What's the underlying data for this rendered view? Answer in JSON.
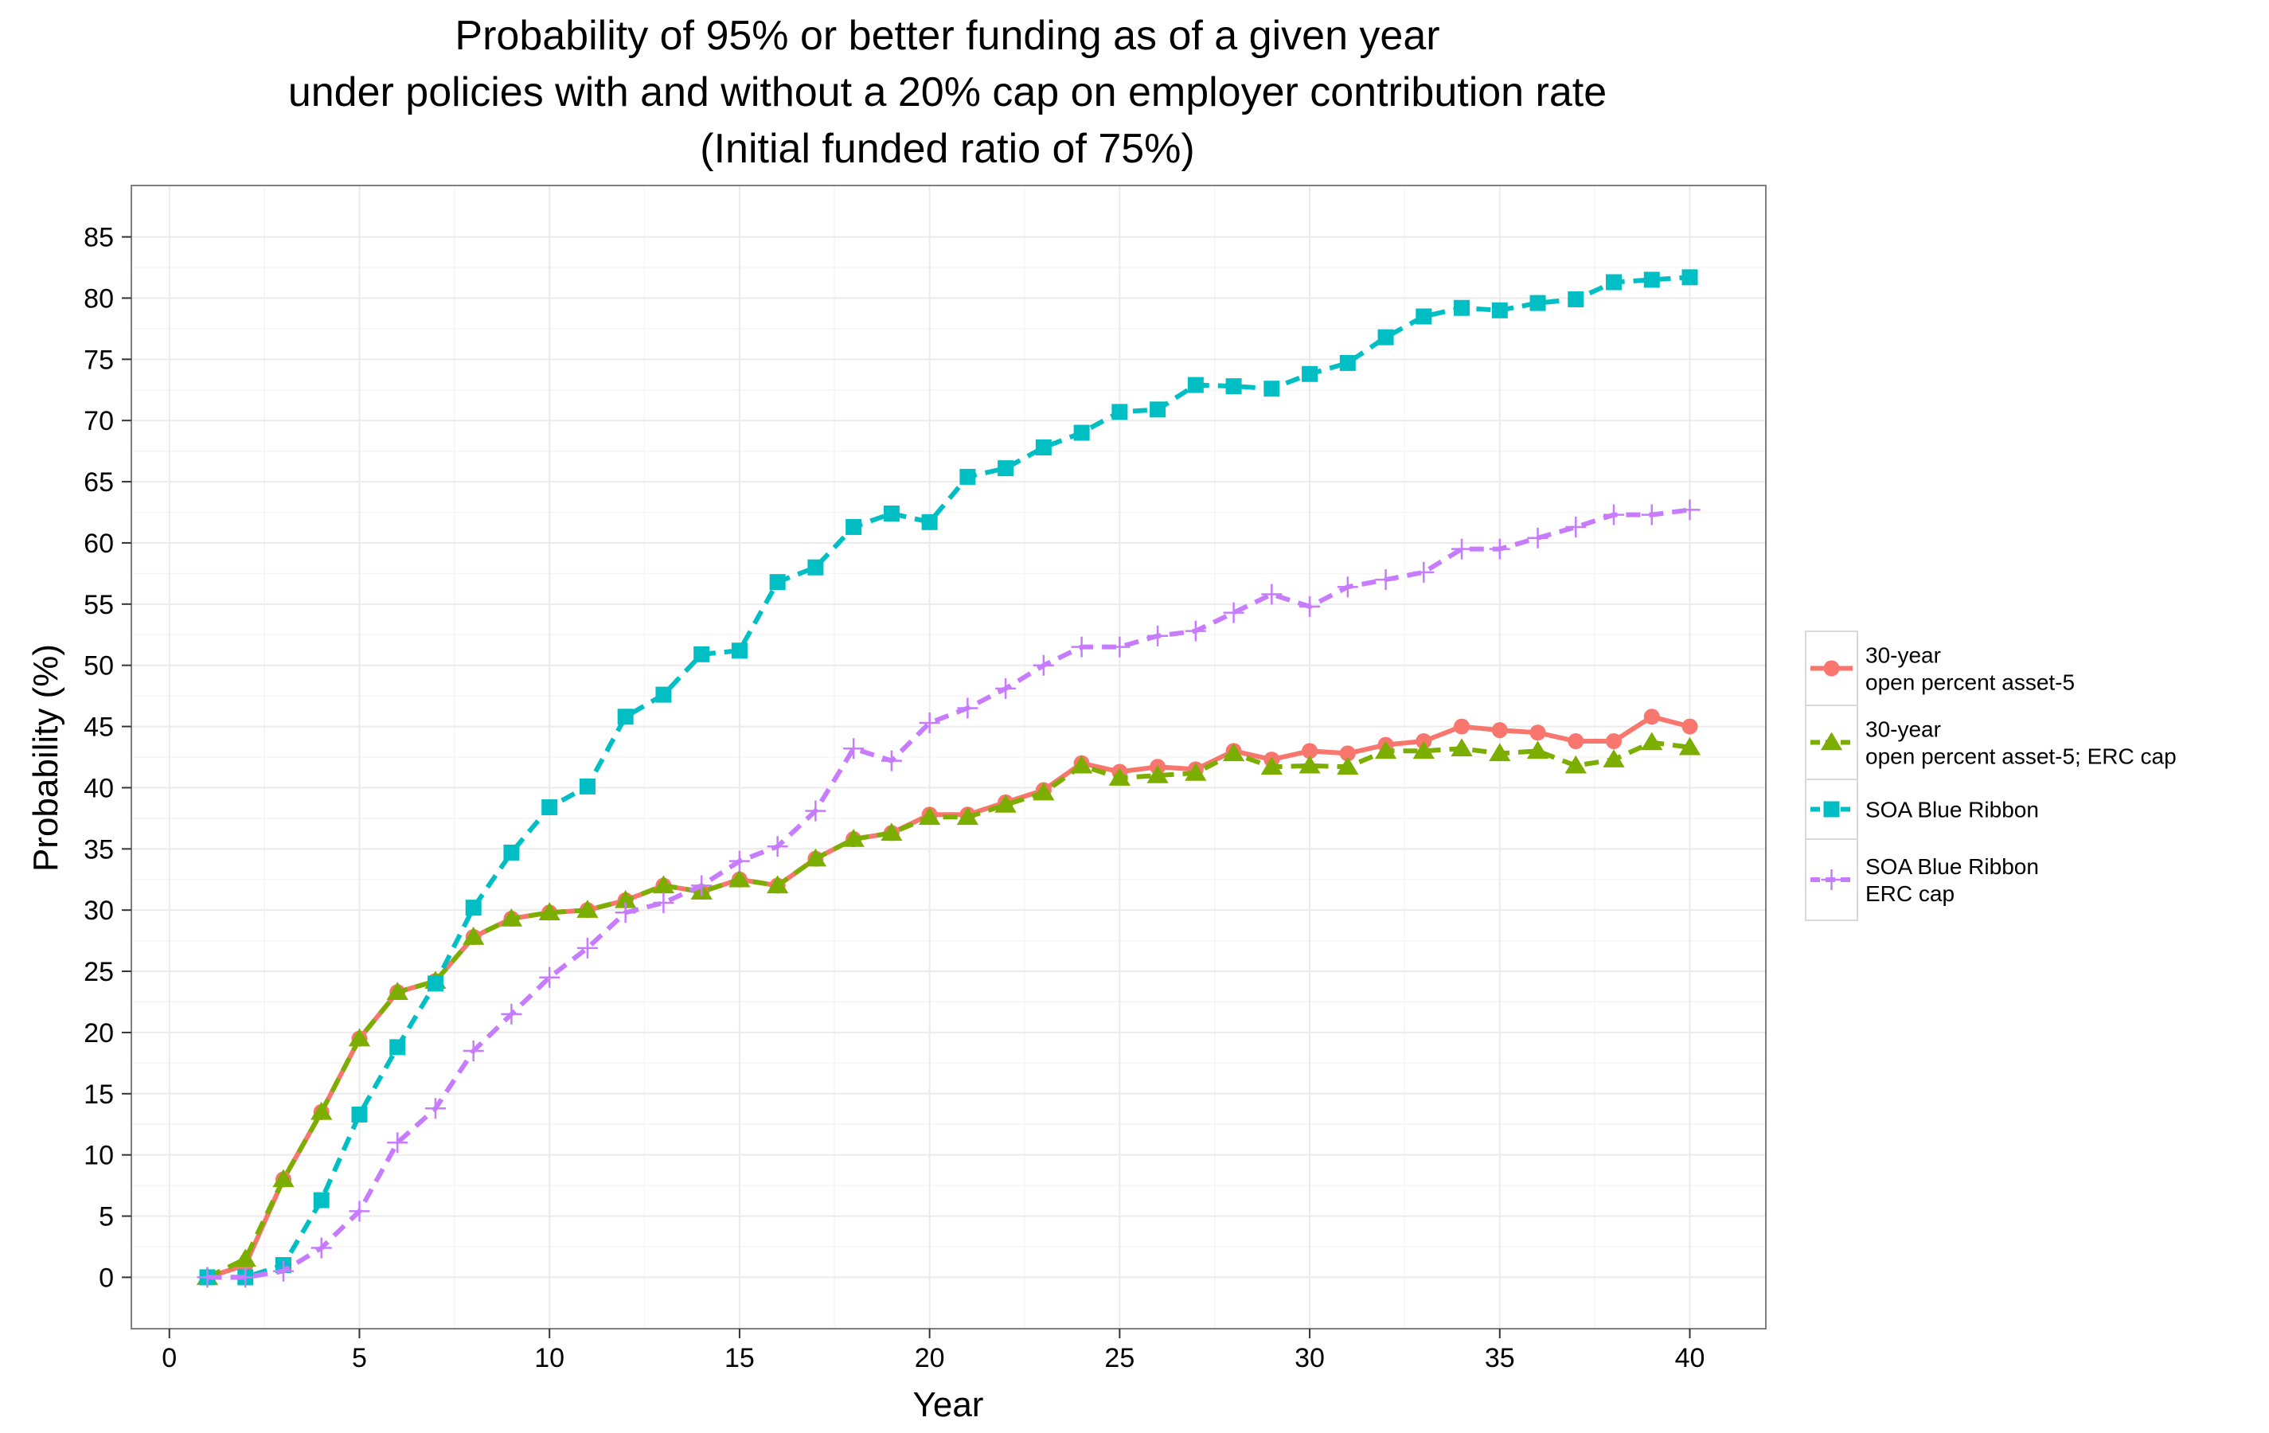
{
  "chart_data": {
    "type": "line",
    "title": [
      "Probability of 95% or better funding as of a given year",
      "under policies with and without a 20% cap on employer contribution rate",
      "(Initial funded ratio of 75%)"
    ],
    "xlabel": "Year",
    "ylabel": "Probability (%)",
    "xlim": [
      -1,
      42
    ],
    "ylim": [
      -4.2,
      89.2
    ],
    "x_ticks": [
      0,
      5,
      10,
      15,
      20,
      25,
      30,
      35,
      40
    ],
    "y_ticks": [
      0,
      5,
      10,
      15,
      20,
      25,
      30,
      35,
      40,
      45,
      50,
      55,
      60,
      65,
      70,
      75,
      80,
      85
    ],
    "grid": true,
    "legend_position": "right",
    "x": [
      1,
      2,
      3,
      4,
      5,
      6,
      7,
      8,
      9,
      10,
      11,
      12,
      13,
      14,
      15,
      16,
      17,
      18,
      19,
      20,
      21,
      22,
      23,
      24,
      25,
      26,
      27,
      28,
      29,
      30,
      31,
      32,
      33,
      34,
      35,
      36,
      37,
      38,
      39,
      40
    ],
    "series": [
      {
        "name": [
          "30-year",
          "open percent asset-5"
        ],
        "color": "#f8766d",
        "marker": "circle",
        "dash": "solid",
        "values": [
          0,
          1,
          8,
          13.5,
          19.5,
          23.3,
          24.2,
          27.8,
          29.3,
          29.8,
          30,
          30.8,
          32,
          31.5,
          32.5,
          32,
          34.2,
          35.8,
          36.3,
          37.8,
          37.8,
          38.8,
          39.8,
          42,
          41.3,
          41.7,
          41.5,
          43,
          42.3,
          43,
          42.8,
          43.5,
          43.8,
          45,
          44.7,
          44.5,
          43.8,
          43.8,
          45.8,
          45
        ]
      },
      {
        "name": [
          "30-year",
          "open percent asset-5; ERC cap"
        ],
        "color": "#7cae00",
        "marker": "triangle",
        "dash": "dashed",
        "values": [
          0,
          1.5,
          8,
          13.5,
          19.5,
          23.3,
          24.2,
          27.8,
          29.3,
          29.8,
          30,
          30.8,
          32,
          31.5,
          32.5,
          32,
          34.2,
          35.8,
          36.3,
          37.6,
          37.6,
          38.6,
          39.6,
          41.8,
          40.8,
          41,
          41.2,
          42.8,
          41.7,
          41.8,
          41.7,
          43,
          43,
          43.2,
          42.8,
          43,
          41.8,
          42.3,
          43.7,
          43.3
        ]
      },
      {
        "name": [
          "SOA Blue Ribbon"
        ],
        "color": "#00bfc4",
        "marker": "square",
        "dash": "dashed",
        "values": [
          0,
          0,
          1,
          6.3,
          13.3,
          18.8,
          24,
          30.2,
          34.7,
          38.4,
          40.1,
          45.8,
          47.6,
          50.9,
          51.2,
          56.8,
          58,
          61.3,
          62.4,
          61.7,
          65.4,
          66.1,
          67.8,
          69,
          70.7,
          70.9,
          72.9,
          72.8,
          72.6,
          73.8,
          74.7,
          76.8,
          78.5,
          79.2,
          79,
          79.6,
          79.9,
          81.3,
          81.5,
          81.7
        ]
      },
      {
        "name": [
          "SOA Blue Ribbon",
          "ERC cap"
        ],
        "color": "#c77cff",
        "marker": "plus",
        "dash": "dashed",
        "values": [
          0,
          0,
          0.5,
          2.4,
          5.4,
          11,
          13.8,
          18.5,
          21.5,
          24.5,
          26.9,
          29.8,
          30.6,
          32,
          34,
          35.2,
          38.1,
          43.2,
          42.2,
          45.3,
          46.5,
          48.1,
          50,
          51.5,
          51.5,
          52.4,
          52.8,
          54.3,
          55.8,
          54.8,
          56.4,
          57,
          57.6,
          59.5,
          59.5,
          60.4,
          61.3,
          62.3,
          62.3,
          62.7
        ]
      }
    ]
  }
}
